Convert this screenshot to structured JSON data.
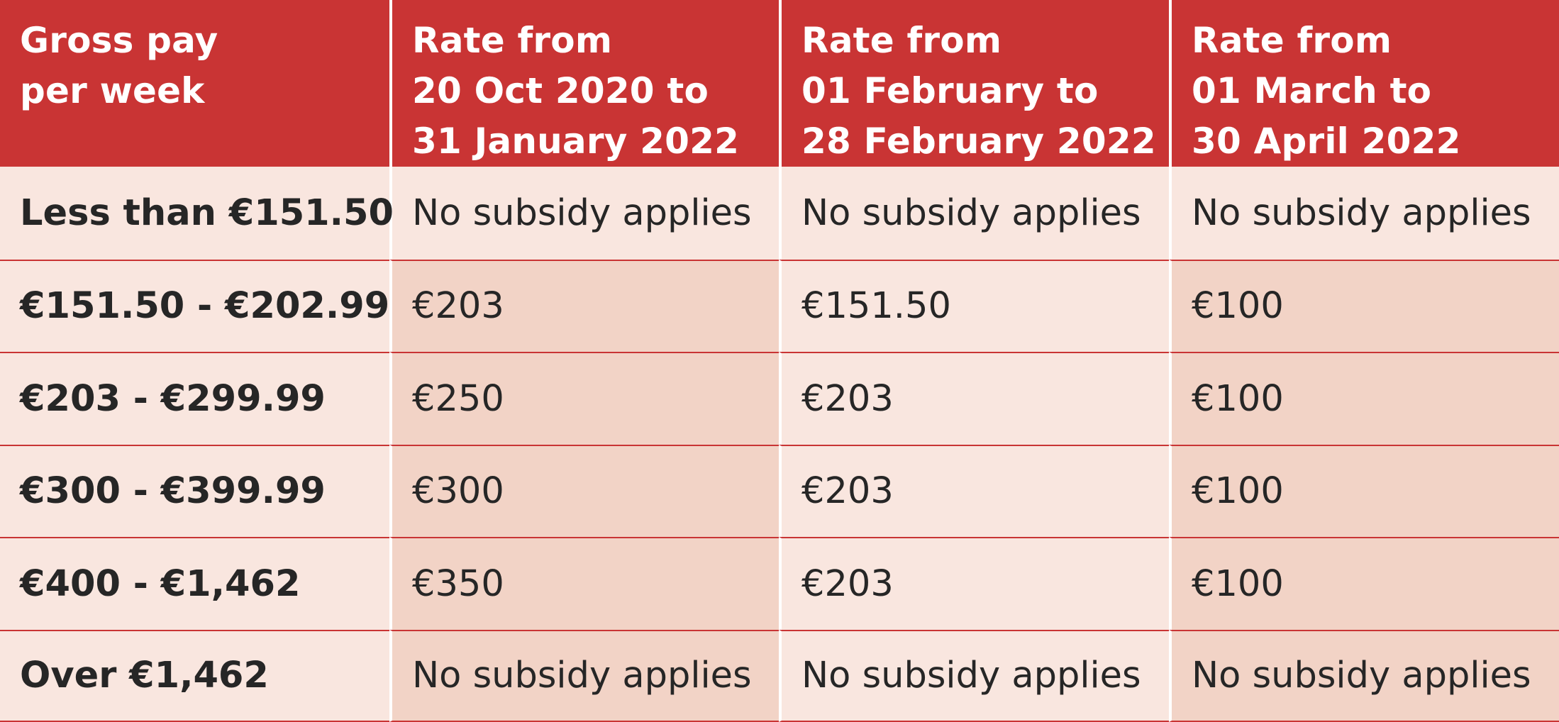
{
  "colors": {
    "header_bg": "#c93434",
    "header_text": "#ffffff",
    "row_light": "#f9e6df",
    "row_dark": "#f2d3c6",
    "divider": "#c93434",
    "body_text": "#262626"
  },
  "table": {
    "headers": [
      {
        "lines": [
          "Gross pay",
          "per week"
        ]
      },
      {
        "lines": [
          "Rate from",
          "20 Oct 2020 to",
          "31 January 2022"
        ]
      },
      {
        "lines": [
          "Rate from",
          "01 February to",
          "28 February 2022"
        ]
      },
      {
        "lines": [
          "Rate from",
          "01 March to",
          "30 April 2022"
        ]
      }
    ],
    "rows": [
      {
        "band": "Less than €151.50",
        "values": [
          "No subsidy applies",
          "No subsidy applies",
          "No subsidy applies"
        ]
      },
      {
        "band": "€151.50 - €202.99",
        "values": [
          "€203",
          "€151.50",
          "€100"
        ]
      },
      {
        "band": "€203 - €299.99",
        "values": [
          "€250",
          "€203",
          "€100"
        ]
      },
      {
        "band": "€300 - €399.99",
        "values": [
          "€300",
          "€203",
          "€100"
        ]
      },
      {
        "band": "€400 - €1,462",
        "values": [
          "€350",
          "€203",
          "€100"
        ]
      },
      {
        "band": "Over €1,462",
        "values": [
          "No subsidy applies",
          "No subsidy applies",
          "No subsidy applies"
        ]
      }
    ]
  }
}
